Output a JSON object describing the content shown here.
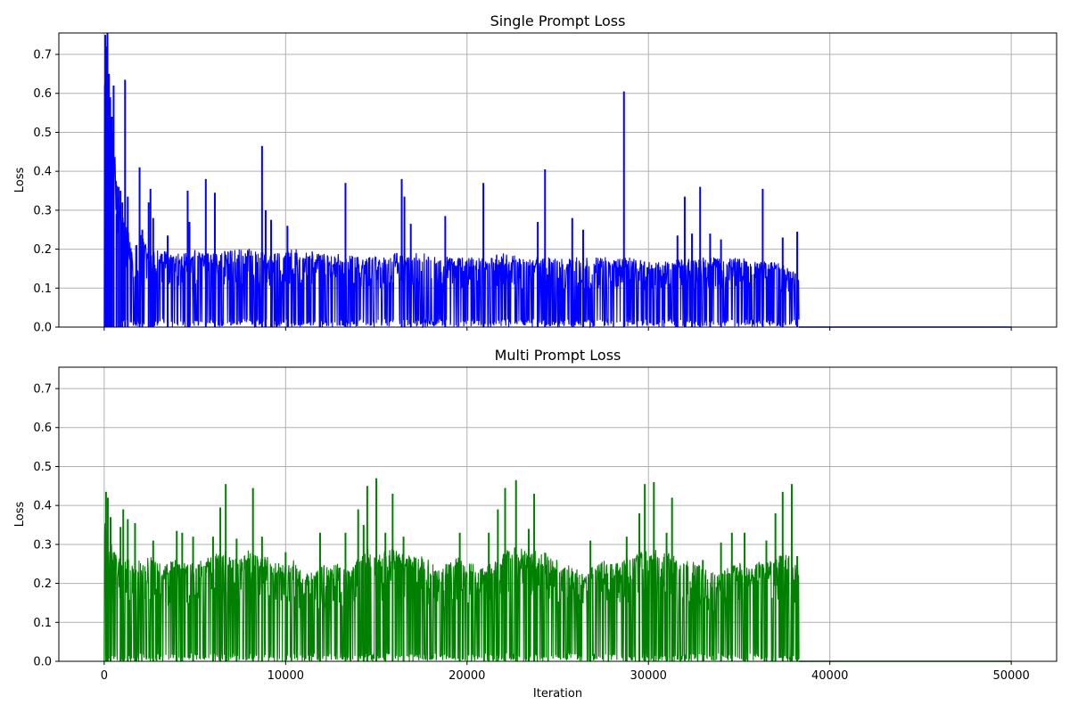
{
  "chart_data": [
    {
      "type": "line",
      "title": "Single Prompt Loss",
      "xlabel": "",
      "ylabel": "Loss",
      "xlim": [
        -2500,
        52500
      ],
      "ylim": [
        0,
        0.755
      ],
      "x_ticks": [
        0,
        10000,
        20000,
        30000,
        40000,
        50000
      ],
      "x_tick_labels_visible": false,
      "y_ticks": [
        0.0,
        0.1,
        0.2,
        0.3,
        0.4,
        0.5,
        0.6,
        0.7
      ],
      "y_tick_labels": [
        "0.0",
        "0.1",
        "0.2",
        "0.3",
        "0.4",
        "0.5",
        "0.6",
        "0.7"
      ],
      "grid": true,
      "color": "#0000ff",
      "active_range": [
        0,
        38300
      ],
      "flat_range": [
        38300,
        50000
      ],
      "flat_value": 0.0,
      "floor_value": 0.0,
      "envelope": {
        "x": [
          0,
          50,
          100,
          200,
          300,
          400,
          500,
          600,
          800,
          1000,
          1200,
          1500,
          1800,
          2000,
          2300,
          2500,
          3000,
          3500,
          4000,
          4500,
          5000,
          5500,
          6000,
          7000,
          8000,
          9000,
          10000,
          11000,
          12000,
          13000,
          14000,
          15000,
          16000,
          17000,
          18000,
          19000,
          20000,
          21000,
          22000,
          23000,
          24000,
          25000,
          26000,
          27000,
          28000,
          29000,
          30000,
          31000,
          32000,
          33000,
          34000,
          35000,
          36000,
          37000,
          37800,
          38300
        ],
        "y": [
          0.75,
          0.72,
          0.7,
          0.65,
          0.6,
          0.55,
          0.5,
          0.45,
          0.33,
          0.3,
          0.27,
          0.23,
          0.24,
          0.24,
          0.22,
          0.21,
          0.2,
          0.2,
          0.19,
          0.19,
          0.2,
          0.19,
          0.19,
          0.2,
          0.2,
          0.19,
          0.2,
          0.2,
          0.19,
          0.19,
          0.18,
          0.18,
          0.19,
          0.19,
          0.19,
          0.18,
          0.18,
          0.18,
          0.19,
          0.18,
          0.18,
          0.18,
          0.18,
          0.18,
          0.18,
          0.18,
          0.17,
          0.17,
          0.18,
          0.18,
          0.18,
          0.18,
          0.17,
          0.17,
          0.15,
          0.13
        ]
      },
      "spikes": [
        {
          "x": 60,
          "y": 0.75
        },
        {
          "x": 120,
          "y": 0.72
        },
        {
          "x": 180,
          "y": 0.755
        },
        {
          "x": 260,
          "y": 0.65
        },
        {
          "x": 330,
          "y": 0.59
        },
        {
          "x": 420,
          "y": 0.54
        },
        {
          "x": 520,
          "y": 0.62
        },
        {
          "x": 680,
          "y": 0.29
        },
        {
          "x": 800,
          "y": 0.36
        },
        {
          "x": 900,
          "y": 0.35
        },
        {
          "x": 1000,
          "y": 0.32
        },
        {
          "x": 1150,
          "y": 0.635
        },
        {
          "x": 1300,
          "y": 0.335
        },
        {
          "x": 1950,
          "y": 0.41
        },
        {
          "x": 2100,
          "y": 0.25
        },
        {
          "x": 2450,
          "y": 0.32
        },
        {
          "x": 2550,
          "y": 0.355
        },
        {
          "x": 2700,
          "y": 0.28
        },
        {
          "x": 3500,
          "y": 0.235
        },
        {
          "x": 4600,
          "y": 0.35
        },
        {
          "x": 4700,
          "y": 0.27
        },
        {
          "x": 5600,
          "y": 0.38
        },
        {
          "x": 6100,
          "y": 0.345
        },
        {
          "x": 8700,
          "y": 0.465
        },
        {
          "x": 8900,
          "y": 0.3
        },
        {
          "x": 9200,
          "y": 0.275
        },
        {
          "x": 10100,
          "y": 0.26
        },
        {
          "x": 13300,
          "y": 0.37
        },
        {
          "x": 16400,
          "y": 0.38
        },
        {
          "x": 16550,
          "y": 0.335
        },
        {
          "x": 16900,
          "y": 0.265
        },
        {
          "x": 18800,
          "y": 0.285
        },
        {
          "x": 20900,
          "y": 0.37
        },
        {
          "x": 23900,
          "y": 0.27
        },
        {
          "x": 24300,
          "y": 0.405
        },
        {
          "x": 25800,
          "y": 0.28
        },
        {
          "x": 26400,
          "y": 0.25
        },
        {
          "x": 28650,
          "y": 0.605
        },
        {
          "x": 31600,
          "y": 0.235
        },
        {
          "x": 32000,
          "y": 0.335
        },
        {
          "x": 32400,
          "y": 0.24
        },
        {
          "x": 32850,
          "y": 0.36
        },
        {
          "x": 33400,
          "y": 0.24
        },
        {
          "x": 34000,
          "y": 0.225
        },
        {
          "x": 36300,
          "y": 0.355
        },
        {
          "x": 37400,
          "y": 0.23
        },
        {
          "x": 38200,
          "y": 0.245
        }
      ]
    },
    {
      "type": "line",
      "title": "Multi Prompt Loss",
      "xlabel": "Iteration",
      "ylabel": "Loss",
      "xlim": [
        -2500,
        52500
      ],
      "ylim": [
        0,
        0.755
      ],
      "x_ticks": [
        0,
        10000,
        20000,
        30000,
        40000,
        50000
      ],
      "x_tick_labels": [
        "0",
        "10000",
        "20000",
        "30000",
        "40000",
        "50000"
      ],
      "y_ticks": [
        0.0,
        0.1,
        0.2,
        0.3,
        0.4,
        0.5,
        0.6,
        0.7
      ],
      "y_tick_labels": [
        "0.0",
        "0.1",
        "0.2",
        "0.3",
        "0.4",
        "0.5",
        "0.6",
        "0.7"
      ],
      "grid": true,
      "color": "#008000",
      "active_range": [
        0,
        38300
      ],
      "flat_range": [
        38300,
        50000
      ],
      "flat_value": 0.0,
      "floor_value": 0.0,
      "envelope": {
        "x": [
          0,
          200,
          500,
          1000,
          1500,
          2000,
          2500,
          3000,
          3500,
          4000,
          4500,
          5000,
          5500,
          6000,
          6500,
          7000,
          7500,
          8000,
          8500,
          9000,
          9500,
          10000,
          10500,
          11000,
          11500,
          12000,
          12500,
          13000,
          13500,
          14000,
          14500,
          15000,
          15500,
          16000,
          16500,
          17000,
          17500,
          18000,
          18500,
          19000,
          19500,
          20000,
          20500,
          21000,
          21500,
          22000,
          22500,
          23000,
          23500,
          24000,
          24500,
          25000,
          25500,
          26000,
          26500,
          27000,
          27500,
          28000,
          28500,
          29000,
          29500,
          30000,
          30500,
          31000,
          31500,
          32000,
          32500,
          33000,
          33500,
          34000,
          34500,
          35000,
          35500,
          36000,
          36500,
          37000,
          37500,
          38000,
          38300
        ],
        "y": [
          0.38,
          0.33,
          0.29,
          0.27,
          0.27,
          0.26,
          0.27,
          0.26,
          0.25,
          0.27,
          0.25,
          0.26,
          0.27,
          0.27,
          0.29,
          0.28,
          0.26,
          0.29,
          0.28,
          0.27,
          0.25,
          0.26,
          0.26,
          0.22,
          0.24,
          0.25,
          0.24,
          0.26,
          0.24,
          0.27,
          0.29,
          0.27,
          0.29,
          0.29,
          0.28,
          0.27,
          0.27,
          0.26,
          0.23,
          0.26,
          0.27,
          0.25,
          0.26,
          0.24,
          0.26,
          0.28,
          0.3,
          0.29,
          0.29,
          0.28,
          0.28,
          0.26,
          0.25,
          0.24,
          0.22,
          0.25,
          0.26,
          0.25,
          0.26,
          0.27,
          0.28,
          0.29,
          0.29,
          0.28,
          0.27,
          0.26,
          0.26,
          0.25,
          0.23,
          0.22,
          0.26,
          0.26,
          0.24,
          0.26,
          0.25,
          0.27,
          0.28,
          0.27,
          0.26
        ]
      },
      "troughs": [
        {
          "x": 0,
          "y": 0.0
        },
        {
          "x": 3300,
          "y": 0.21
        },
        {
          "x": 11000,
          "y": 0.16
        },
        {
          "x": 18900,
          "y": 0.14
        },
        {
          "x": 26600,
          "y": 0.13
        },
        {
          "x": 33700,
          "y": 0.13
        }
      ],
      "spikes": [
        {
          "x": 100,
          "y": 0.435
        },
        {
          "x": 200,
          "y": 0.42
        },
        {
          "x": 350,
          "y": 0.37
        },
        {
          "x": 900,
          "y": 0.345
        },
        {
          "x": 1050,
          "y": 0.39
        },
        {
          "x": 1300,
          "y": 0.365
        },
        {
          "x": 1700,
          "y": 0.355
        },
        {
          "x": 2700,
          "y": 0.31
        },
        {
          "x": 4000,
          "y": 0.335
        },
        {
          "x": 4300,
          "y": 0.33
        },
        {
          "x": 4900,
          "y": 0.32
        },
        {
          "x": 6000,
          "y": 0.32
        },
        {
          "x": 6400,
          "y": 0.395
        },
        {
          "x": 6700,
          "y": 0.455
        },
        {
          "x": 7300,
          "y": 0.315
        },
        {
          "x": 8200,
          "y": 0.445
        },
        {
          "x": 8700,
          "y": 0.32
        },
        {
          "x": 10000,
          "y": 0.28
        },
        {
          "x": 11900,
          "y": 0.33
        },
        {
          "x": 13300,
          "y": 0.33
        },
        {
          "x": 14000,
          "y": 0.39
        },
        {
          "x": 14300,
          "y": 0.35
        },
        {
          "x": 14500,
          "y": 0.45
        },
        {
          "x": 15000,
          "y": 0.47
        },
        {
          "x": 15500,
          "y": 0.33
        },
        {
          "x": 15900,
          "y": 0.43
        },
        {
          "x": 16500,
          "y": 0.32
        },
        {
          "x": 19600,
          "y": 0.33
        },
        {
          "x": 21200,
          "y": 0.33
        },
        {
          "x": 21700,
          "y": 0.39
        },
        {
          "x": 22100,
          "y": 0.445
        },
        {
          "x": 22700,
          "y": 0.465
        },
        {
          "x": 23400,
          "y": 0.34
        },
        {
          "x": 23700,
          "y": 0.43
        },
        {
          "x": 26800,
          "y": 0.31
        },
        {
          "x": 28800,
          "y": 0.32
        },
        {
          "x": 29500,
          "y": 0.38
        },
        {
          "x": 29800,
          "y": 0.455
        },
        {
          "x": 30300,
          "y": 0.46
        },
        {
          "x": 31000,
          "y": 0.33
        },
        {
          "x": 31300,
          "y": 0.42
        },
        {
          "x": 33000,
          "y": 0.26
        },
        {
          "x": 34000,
          "y": 0.305
        },
        {
          "x": 34600,
          "y": 0.33
        },
        {
          "x": 35300,
          "y": 0.33
        },
        {
          "x": 36500,
          "y": 0.31
        },
        {
          "x": 37000,
          "y": 0.38
        },
        {
          "x": 37400,
          "y": 0.435
        },
        {
          "x": 37900,
          "y": 0.455
        },
        {
          "x": 38200,
          "y": 0.27
        }
      ]
    }
  ]
}
